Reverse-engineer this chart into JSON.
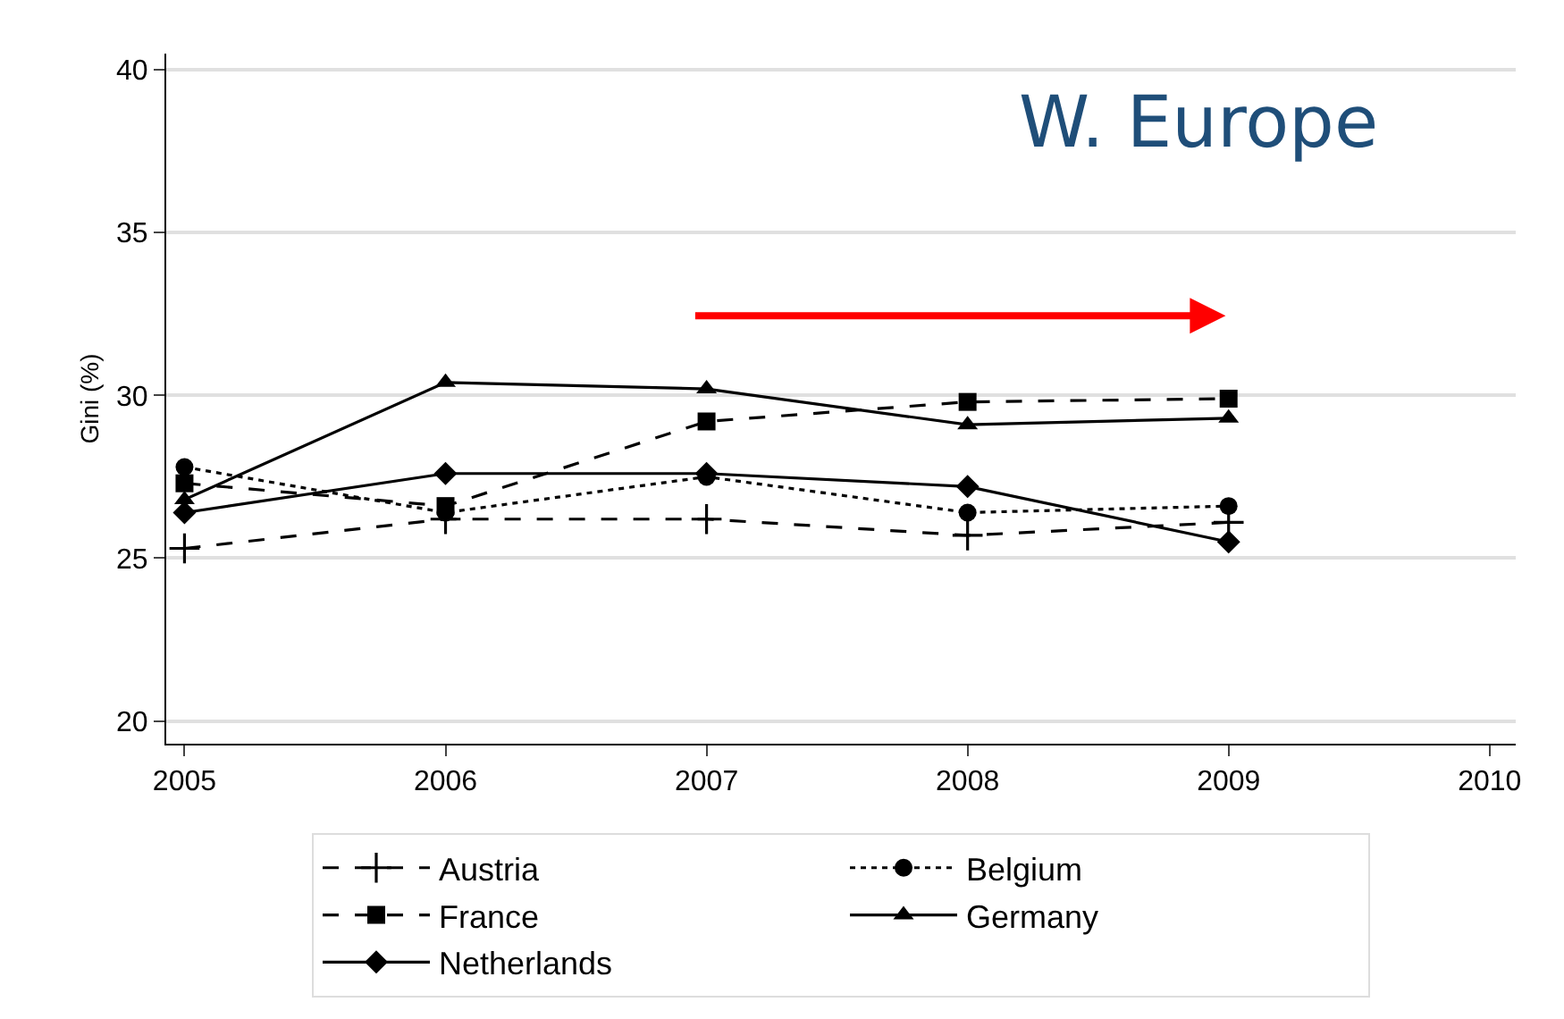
{
  "chart_data": {
    "type": "line",
    "ylabel": "Gini (%)",
    "annotations": [
      "W. Europe"
    ],
    "x": [
      2005,
      2006,
      2007,
      2008,
      2009
    ],
    "xlim": [
      2004.93,
      2010.1
    ],
    "xticks": [
      2005,
      2006,
      2007,
      2008,
      2009,
      2010
    ],
    "ylim": [
      19.3,
      40.5
    ],
    "yticks": [
      20,
      25,
      30,
      35,
      40
    ],
    "grid": "y",
    "legend": "bottom",
    "series": [
      {
        "name": "Austria",
        "color": "#000000",
        "marker": "cross",
        "line_style": "dashed",
        "values": [
          25.3,
          26.2,
          26.2,
          25.7,
          26.1
        ]
      },
      {
        "name": "Belgium",
        "color": "#000000",
        "marker": "circle",
        "line_style": "dotted",
        "values": [
          27.8,
          26.4,
          27.5,
          26.4,
          26.6
        ]
      },
      {
        "name": "France",
        "color": "#000000",
        "marker": "square",
        "line_style": "dashed",
        "values": [
          27.3,
          26.6,
          29.2,
          29.8,
          29.9
        ]
      },
      {
        "name": "Germany",
        "color": "#000000",
        "marker": "triangle",
        "line_style": "solid",
        "values": [
          26.8,
          30.4,
          30.2,
          29.1,
          29.3
        ]
      },
      {
        "name": "Netherlands",
        "color": "#000000",
        "marker": "diamond",
        "line_style": "solid",
        "values": [
          26.4,
          27.6,
          27.6,
          27.2,
          25.5
        ]
      }
    ]
  }
}
